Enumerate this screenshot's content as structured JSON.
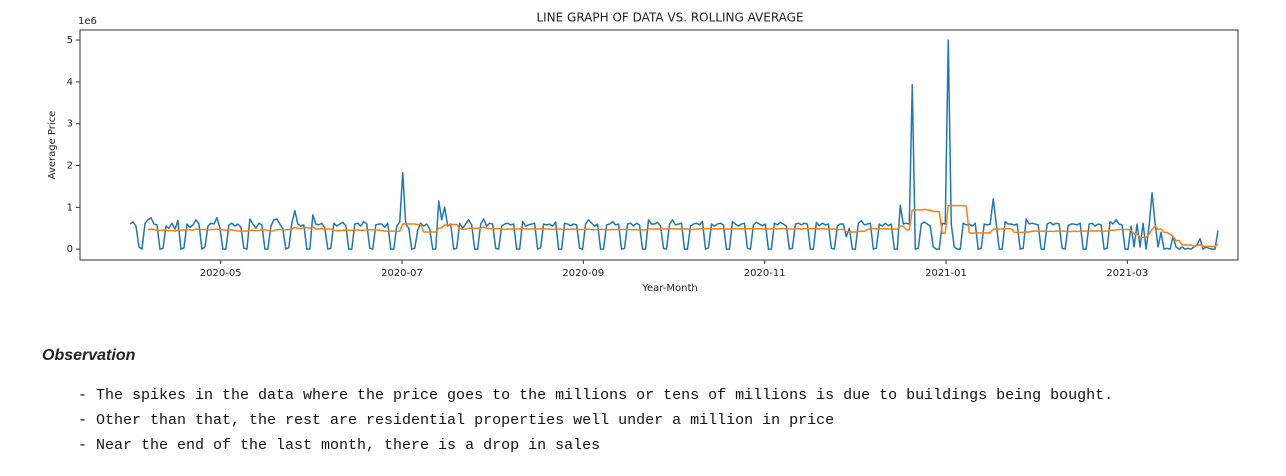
{
  "chart_data": {
    "type": "line",
    "title": "LINE GRAPH OF DATA VS. ROLLING AVERAGE",
    "x_label": "Year-Month",
    "y_label": "Average Price",
    "y_offset_label": "1e6",
    "xlim": [
      "2020-04",
      "2021-04"
    ],
    "xticks": [
      "2020-05",
      "2020-07",
      "2020-09",
      "2020-11",
      "2021-01",
      "2021-03"
    ],
    "ylim": [
      -0.26,
      5.24
    ],
    "yticks": [
      0,
      1,
      2,
      3,
      4,
      5
    ],
    "grid": false,
    "series": [
      {
        "color": "#1f77b4",
        "values": [
          0.6,
          0.65,
          0.55,
          0.05,
          0.0,
          0.62,
          0.7,
          0.75,
          0.6,
          0.58,
          0.0,
          0.02,
          0.55,
          0.5,
          0.62,
          0.48,
          0.68,
          0.0,
          0.03,
          0.6,
          0.52,
          0.58,
          0.7,
          0.6,
          0.0,
          0.05,
          0.55,
          0.62,
          0.6,
          0.75,
          0.5,
          0.0,
          0.0,
          0.58,
          0.62,
          0.55,
          0.6,
          0.52,
          0.02,
          0.0,
          0.72,
          0.6,
          0.5,
          0.62,
          0.58,
          0.0,
          0.0,
          0.55,
          0.7,
          0.72,
          0.6,
          0.48,
          0.0,
          0.04,
          0.62,
          0.92,
          0.6,
          0.55,
          0.58,
          0.0,
          0.0,
          0.82,
          0.6,
          0.58,
          0.62,
          0.5,
          0.0,
          0.02,
          0.62,
          0.55,
          0.6,
          0.64,
          0.56,
          0.0,
          0.0,
          0.6,
          0.62,
          0.55,
          0.66,
          0.6,
          0.02,
          0.0,
          0.58,
          0.6,
          0.6,
          0.52,
          0.62,
          0.0,
          0.0,
          0.55,
          0.65,
          1.83,
          0.6,
          0.5,
          0.0,
          0.02,
          0.45,
          0.62,
          0.55,
          0.6,
          0.48,
          0.0,
          0.0,
          1.15,
          0.7,
          1.0,
          0.55,
          0.6,
          0.0,
          0.02,
          0.62,
          0.5,
          0.6,
          0.7,
          0.58,
          0.0,
          0.0,
          0.6,
          0.72,
          0.55,
          0.62,
          0.6,
          0.02,
          0.0,
          0.55,
          0.6,
          0.62,
          0.58,
          0.6,
          0.0,
          0.0,
          0.66,
          0.55,
          0.58,
          0.6,
          0.62,
          0.0,
          0.03,
          0.6,
          0.58,
          0.6,
          0.55,
          0.65,
          0.0,
          0.0,
          0.62,
          0.6,
          0.56,
          0.6,
          0.58,
          0.02,
          0.0,
          0.6,
          0.7,
          0.62,
          0.55,
          0.6,
          0.0,
          0.0,
          0.58,
          0.6,
          0.66,
          0.58,
          0.6,
          0.0,
          0.02,
          0.6,
          0.62,
          0.55,
          0.62,
          0.58,
          0.0,
          0.0,
          0.7,
          0.6,
          0.6,
          0.64,
          0.56,
          0.02,
          0.0,
          0.6,
          0.7,
          0.58,
          0.6,
          0.62,
          0.0,
          0.0,
          0.55,
          0.6,
          0.62,
          0.58,
          0.66,
          0.0,
          0.03,
          0.6,
          0.55,
          0.6,
          0.62,
          0.58,
          0.0,
          0.0,
          0.66,
          0.6,
          0.55,
          0.6,
          0.62,
          0.02,
          0.0,
          0.58,
          0.64,
          0.6,
          0.56,
          0.6,
          0.0,
          0.0,
          0.62,
          0.58,
          0.64,
          0.6,
          0.55,
          0.0,
          0.02,
          0.6,
          0.62,
          0.58,
          0.62,
          0.6,
          0.0,
          0.0,
          0.64,
          0.56,
          0.62,
          0.58,
          0.6,
          0.02,
          0.0,
          0.55,
          0.6,
          0.6,
          0.3,
          0.5,
          0.0,
          0.0,
          0.62,
          0.68,
          0.58,
          0.6,
          0.62,
          0.0,
          0.02,
          0.6,
          0.55,
          0.62,
          0.56,
          0.6,
          0.0,
          0.0,
          1.05,
          0.6,
          0.62,
          0.6,
          3.93,
          0.0,
          0.02,
          0.6,
          0.65,
          0.6,
          0.55,
          0.05,
          0.0,
          0.0,
          0.62,
          0.6,
          5.0,
          0.6,
          0.05,
          0.0,
          0.0,
          0.62,
          0.58,
          0.6,
          0.55,
          0.62,
          0.0,
          0.02,
          0.6,
          0.58,
          0.6,
          1.2,
          0.62,
          0.0,
          0.0,
          0.66,
          0.6,
          0.6,
          0.58,
          0.6,
          0.0,
          0.02,
          0.72,
          0.6,
          0.62,
          0.6,
          0.58,
          0.0,
          0.0,
          0.6,
          0.64,
          0.58,
          0.62,
          0.6,
          0.02,
          0.0,
          0.56,
          0.6,
          0.6,
          0.58,
          0.62,
          0.0,
          0.0,
          0.6,
          0.62,
          0.55,
          0.6,
          0.58,
          0.0,
          0.02,
          0.66,
          0.6,
          0.7,
          0.6,
          0.58,
          0.0,
          0.0,
          0.55,
          0.05,
          0.6,
          0.05,
          0.62,
          0.0,
          0.55,
          1.35,
          0.62,
          0.05,
          0.4,
          0.0,
          0.02,
          0.0,
          0.3,
          0.05,
          0.0,
          0.05,
          0.0,
          0.02,
          0.0,
          0.05,
          0.1,
          0.25,
          0.0,
          0.05,
          0.02,
          0.0,
          0.0,
          0.45
        ]
      },
      {
        "color": "#ff7f0e",
        "values": [
          null,
          null,
          null,
          null,
          null,
          null,
          0.47,
          0.48,
          0.47,
          0.45,
          0.45,
          0.46,
          0.45,
          0.44,
          0.45,
          0.43,
          0.45,
          0.45,
          0.46,
          0.46,
          0.46,
          0.45,
          0.48,
          0.47,
          0.47,
          0.47,
          0.46,
          0.47,
          0.47,
          0.48,
          0.46,
          0.46,
          0.45,
          0.46,
          0.46,
          0.45,
          0.43,
          0.43,
          0.43,
          0.43,
          0.45,
          0.45,
          0.44,
          0.45,
          0.46,
          0.46,
          0.45,
          0.43,
          0.44,
          0.47,
          0.47,
          0.46,
          0.46,
          0.47,
          0.48,
          0.52,
          0.5,
          0.49,
          0.51,
          0.51,
          0.5,
          0.53,
          0.48,
          0.48,
          0.49,
          0.48,
          0.48,
          0.48,
          0.45,
          0.44,
          0.44,
          0.45,
          0.45,
          0.45,
          0.45,
          0.45,
          0.46,
          0.45,
          0.45,
          0.46,
          0.46,
          0.46,
          0.46,
          0.45,
          0.45,
          0.43,
          0.43,
          0.43,
          0.43,
          0.42,
          0.43,
          0.6,
          0.61,
          0.6,
          0.6,
          0.6,
          0.59,
          0.59,
          0.41,
          0.41,
          0.41,
          0.41,
          0.41,
          0.5,
          0.51,
          0.58,
          0.57,
          0.59,
          0.59,
          0.59,
          0.5,
          0.47,
          0.48,
          0.5,
          0.5,
          0.5,
          0.5,
          0.5,
          0.53,
          0.5,
          0.49,
          0.49,
          0.49,
          0.49,
          0.48,
          0.47,
          0.48,
          0.48,
          0.48,
          0.48,
          0.48,
          0.49,
          0.48,
          0.48,
          0.48,
          0.48,
          0.48,
          0.49,
          0.48,
          0.48,
          0.48,
          0.47,
          0.48,
          0.48,
          0.47,
          0.47,
          0.48,
          0.47,
          0.48,
          0.47,
          0.47,
          0.47,
          0.47,
          0.48,
          0.47,
          0.46,
          0.47,
          0.47,
          0.47,
          0.46,
          0.46,
          0.47,
          0.47,
          0.47,
          0.47,
          0.47,
          0.47,
          0.47,
          0.46,
          0.47,
          0.46,
          0.46,
          0.46,
          0.48,
          0.48,
          0.48,
          0.48,
          0.48,
          0.48,
          0.48,
          0.48,
          0.49,
          0.48,
          0.48,
          0.48,
          0.48,
          0.48,
          0.47,
          0.47,
          0.48,
          0.48,
          0.49,
          0.49,
          0.49,
          0.49,
          0.48,
          0.48,
          0.49,
          0.48,
          0.48,
          0.48,
          0.49,
          0.49,
          0.48,
          0.48,
          0.49,
          0.49,
          0.49,
          0.48,
          0.49,
          0.49,
          0.48,
          0.48,
          0.48,
          0.48,
          0.49,
          0.48,
          0.49,
          0.49,
          0.48,
          0.48,
          0.48,
          0.48,
          0.49,
          0.48,
          0.49,
          0.49,
          0.49,
          0.49,
          0.49,
          0.48,
          0.49,
          0.48,
          0.48,
          0.48,
          0.48,
          0.47,
          0.47,
          0.47,
          0.42,
          0.41,
          0.41,
          0.41,
          0.42,
          0.43,
          0.42,
          0.47,
          0.49,
          0.49,
          0.49,
          0.49,
          0.48,
          0.49,
          0.48,
          0.48,
          0.48,
          0.48,
          0.55,
          0.55,
          0.46,
          0.46,
          0.94,
          0.94,
          0.94,
          0.94,
          0.95,
          0.94,
          0.93,
          0.9,
          0.9,
          0.9,
          0.38,
          0.38,
          1.04,
          1.04,
          1.04,
          1.04,
          1.04,
          1.04,
          1.03,
          0.39,
          0.38,
          0.39,
          0.39,
          0.39,
          0.39,
          0.39,
          0.39,
          0.48,
          0.48,
          0.48,
          0.48,
          0.49,
          0.49,
          0.49,
          0.4,
          0.4,
          0.4,
          0.4,
          0.41,
          0.41,
          0.43,
          0.43,
          0.43,
          0.43,
          0.43,
          0.42,
          0.43,
          0.42,
          0.43,
          0.43,
          0.43,
          0.43,
          0.42,
          0.42,
          0.43,
          0.42,
          0.43,
          0.43,
          0.43,
          0.43,
          0.44,
          0.43,
          0.44,
          0.43,
          0.43,
          0.43,
          0.45,
          0.45,
          0.46,
          0.47,
          0.47,
          0.47,
          0.47,
          0.45,
          0.36,
          0.36,
          0.28,
          0.28,
          0.28,
          0.36,
          0.47,
          0.55,
          0.47,
          0.48,
          0.4,
          0.4,
          0.35,
          0.31,
          0.2,
          0.21,
          0.1,
          0.1,
          0.1,
          0.1,
          0.07,
          0.08,
          0.11,
          0.07,
          0.07,
          0.07,
          0.07,
          0.06,
          0.12
        ]
      }
    ]
  },
  "markdown": {
    "heading": "Observation",
    "items": [
      "- The spikes in the data where the price goes to the millions or tens of millions is due to buildings being bought.",
      "- Other than that, the rest are residential properties well under a million in price",
      "- Near the end of the last month, there is a drop in sales"
    ]
  }
}
